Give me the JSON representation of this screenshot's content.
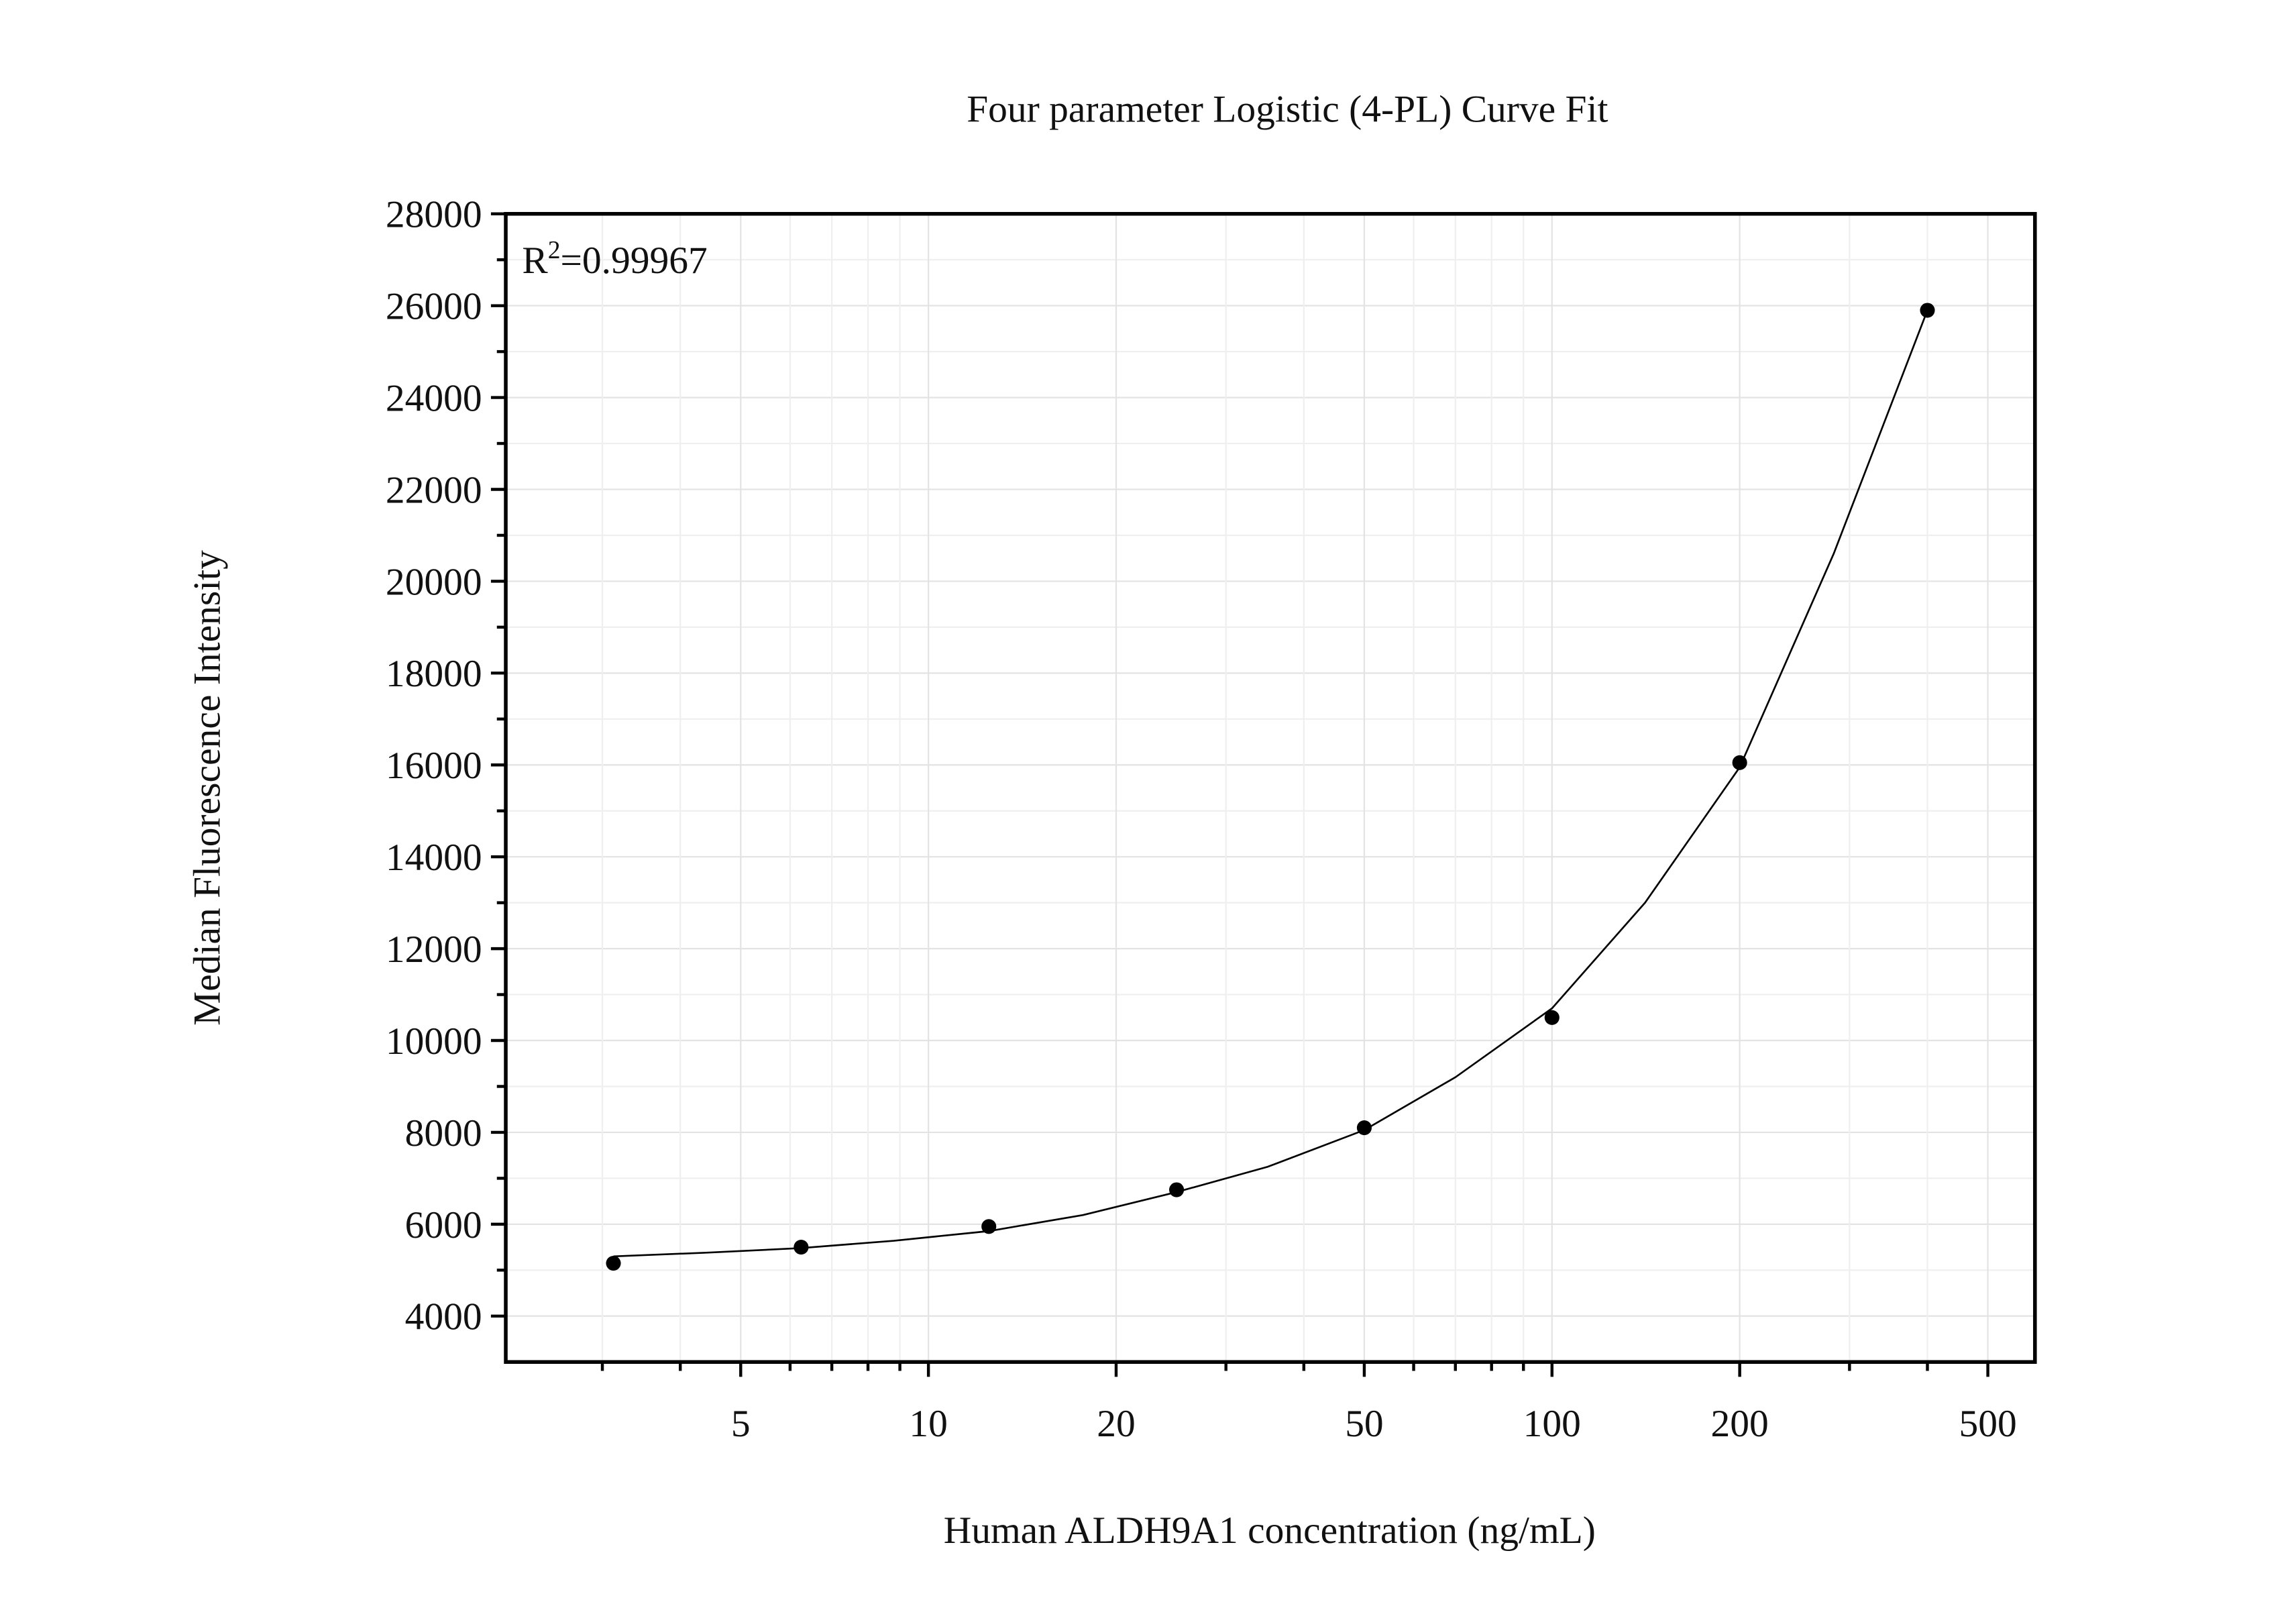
{
  "chart_data": {
    "type": "scatter",
    "title": "Four parameter Logistic (4-PL) Curve Fit",
    "x_label": "Human ALDH9A1 concentration (ng/mL)",
    "y_label": "Median Fluorescence Intensity",
    "annotation": {
      "base": "R",
      "sup": "2",
      "text": "=0.99967"
    },
    "x": [
      3.125,
      6.25,
      12.5,
      25,
      50,
      100,
      200,
      400
    ],
    "values": [
      5150,
      5500,
      5950,
      6750,
      8100,
      10500,
      16050,
      25900
    ],
    "fit": {
      "x": [
        3.125,
        4.4,
        6.25,
        8.8,
        12.5,
        17.7,
        25,
        35,
        50,
        70,
        100,
        141,
        200,
        283,
        400
      ],
      "y": [
        5300,
        5380,
        5480,
        5640,
        5850,
        6200,
        6700,
        7250,
        8050,
        9200,
        10700,
        13000,
        15950,
        20600,
        25900
      ]
    },
    "color": "#000000",
    "x_log": true,
    "xlim": [
      2.1,
      595
    ],
    "ylim": [
      3000,
      28000
    ],
    "xticks": [
      5,
      10,
      20,
      50,
      100,
      200,
      500
    ],
    "xminor": [
      3,
      4,
      6,
      7,
      8,
      9,
      30,
      40,
      60,
      70,
      80,
      90,
      300,
      400
    ],
    "yticks": [
      4000,
      6000,
      8000,
      10000,
      12000,
      14000,
      16000,
      18000,
      20000,
      22000,
      24000,
      26000,
      28000
    ],
    "yminor": [
      5000,
      7000,
      9000,
      11000,
      13000,
      15000,
      17000,
      19000,
      21000,
      23000,
      25000,
      27000
    ],
    "grid": true
  }
}
